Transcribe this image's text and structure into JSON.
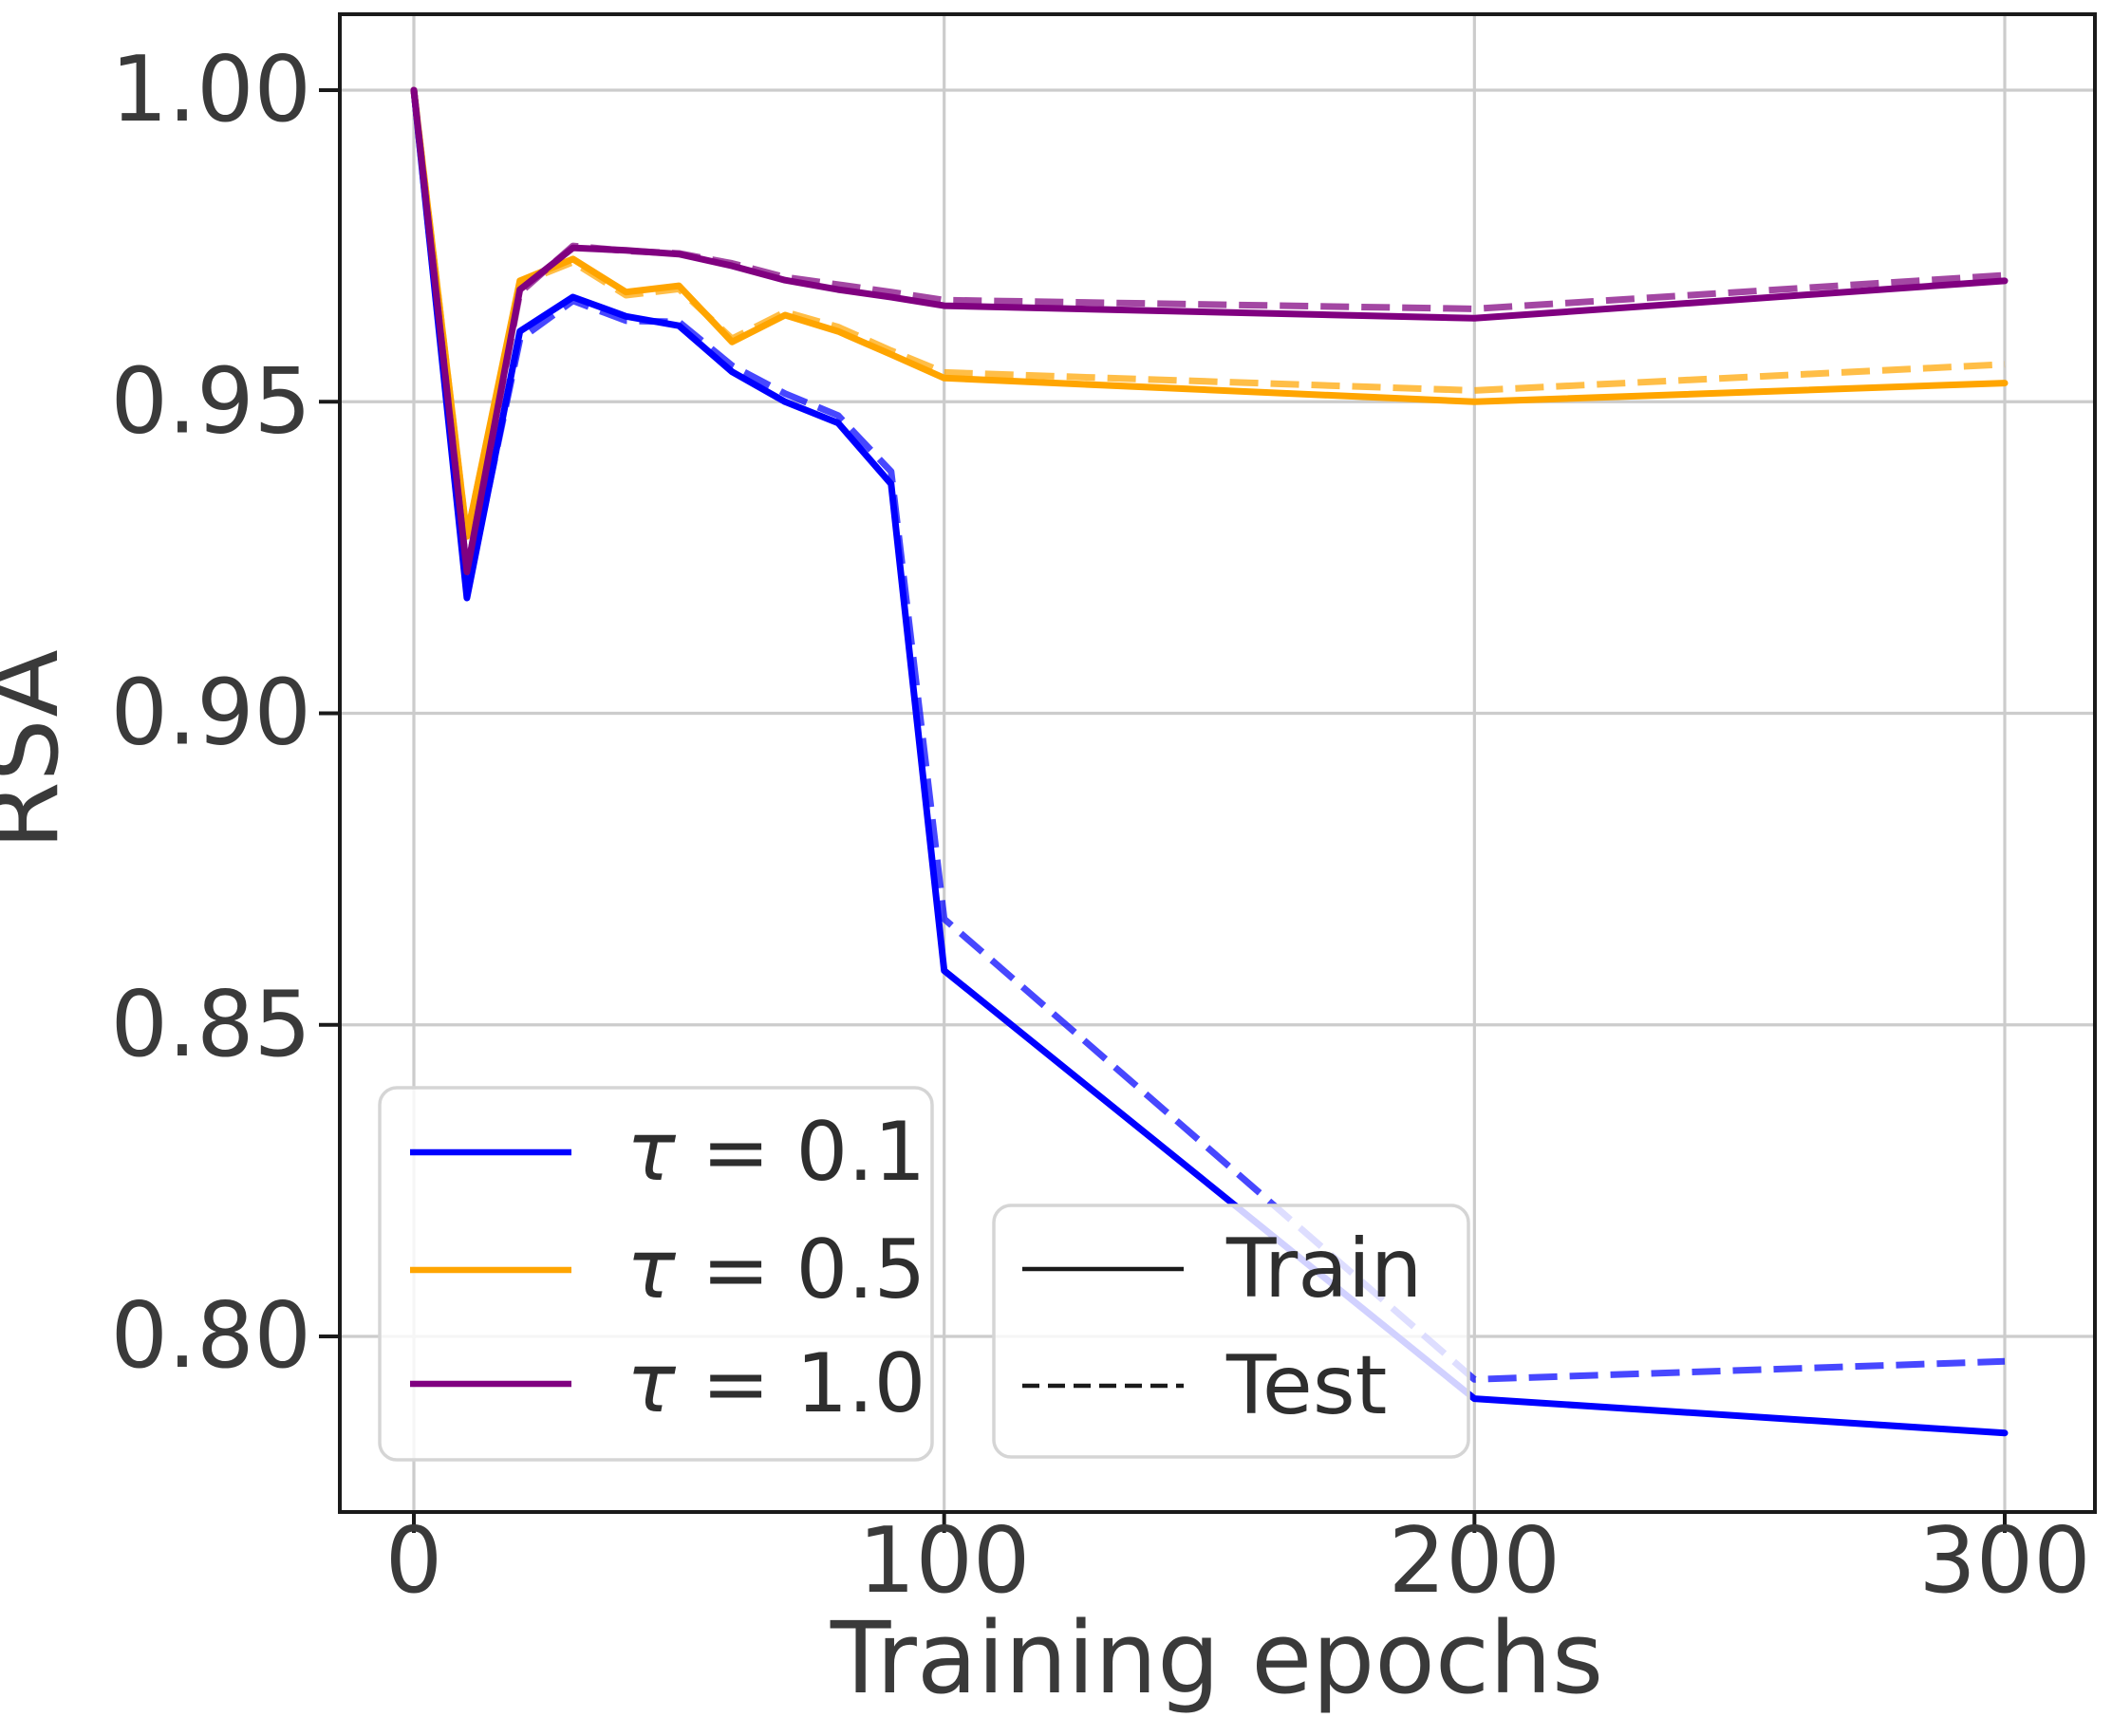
{
  "chart_data": {
    "type": "line",
    "title": "",
    "xlabel": "Training epochs",
    "ylabel": "RSA",
    "epochs": [
      0,
      10,
      20,
      30,
      40,
      50,
      60,
      70,
      80,
      90,
      100,
      200,
      300
    ],
    "xticks": {
      "values": [
        0,
        100,
        200,
        300
      ],
      "labels": [
        "0",
        "100",
        "200",
        "300"
      ]
    },
    "yticks": {
      "values": [
        1.0,
        0.95,
        0.9,
        0.85,
        0.8
      ],
      "labels": [
        "1.00",
        "0.95",
        "0.90",
        "0.85",
        "0.80"
      ]
    },
    "xlim": [
      -14,
      317
    ],
    "ylim": [
      0.772,
      1.012
    ],
    "grid": true,
    "series": [
      {
        "name": "tau-0.1-train",
        "tau": "0.1",
        "split": "Train",
        "color": "#0000ff",
        "dash": "solid",
        "values": [
          1.0,
          0.9185,
          0.9613,
          0.9668,
          0.9637,
          0.9622,
          0.9548,
          0.95,
          0.9466,
          0.9368,
          0.8587,
          0.79,
          0.7845
        ]
      },
      {
        "name": "tau-0.1-test",
        "tau": "0.1",
        "split": "Test",
        "color": "#0000ff",
        "dash": "dashed",
        "values": [
          1.0,
          0.9195,
          0.96,
          0.9662,
          0.963,
          0.9628,
          0.9558,
          0.9513,
          0.9478,
          0.9388,
          0.867,
          0.7931,
          0.796
        ]
      },
      {
        "name": "tau-0.5-train",
        "tau": "0.5",
        "split": "Train",
        "color": "#ffa500",
        "dash": "solid",
        "values": [
          1.0,
          0.9284,
          0.9694,
          0.9729,
          0.9676,
          0.9686,
          0.9596,
          0.9639,
          0.9613,
          0.9576,
          0.9538,
          0.95,
          0.953
        ]
      },
      {
        "name": "tau-0.5-test",
        "tau": "0.5",
        "split": "Test",
        "color": "#ffa500",
        "dash": "dashed",
        "values": [
          1.0,
          0.9284,
          0.969,
          0.9724,
          0.9671,
          0.9681,
          0.9601,
          0.9644,
          0.962,
          0.9582,
          0.9547,
          0.9518,
          0.956
        ]
      },
      {
        "name": "tau-1.0-train",
        "tau": "1.0",
        "split": "Train",
        "color": "#800080",
        "dash": "solid",
        "values": [
          1.0,
          0.9227,
          0.968,
          0.9747,
          0.9743,
          0.9737,
          0.9718,
          0.9695,
          0.968,
          0.9668,
          0.9654,
          0.9634,
          0.9694
        ]
      },
      {
        "name": "tau-1.0-test",
        "tau": "1.0",
        "split": "Test",
        "color": "#800080",
        "dash": "dashed",
        "values": [
          1.0,
          0.9227,
          0.9675,
          0.975,
          0.9742,
          0.9738,
          0.9722,
          0.97,
          0.9688,
          0.9676,
          0.9663,
          0.9649,
          0.9703
        ]
      }
    ],
    "legends": [
      {
        "id": "tau-legend",
        "position": "lower left",
        "items": [
          {
            "label": "τ = 0.1",
            "color": "#0000ff",
            "dash": "solid"
          },
          {
            "label": "τ = 0.5",
            "color": "#ffa500",
            "dash": "solid"
          },
          {
            "label": "τ = 1.0",
            "color": "#800080",
            "dash": "solid"
          }
        ]
      },
      {
        "id": "split-legend",
        "position": "lower right",
        "items": [
          {
            "label": "Train",
            "color": "#1a1a1a",
            "dash": "solid"
          },
          {
            "label": "Test",
            "color": "#1a1a1a",
            "dash": "dashed"
          }
        ]
      }
    ],
    "style": {
      "background": "#ffffff",
      "grid_color": "#cccccc",
      "spine_color": "#1a1a1a",
      "text_color": "#3a3a3a",
      "legend_border": "#d5d5d5",
      "test_line_opacity": 0.72
    }
  }
}
